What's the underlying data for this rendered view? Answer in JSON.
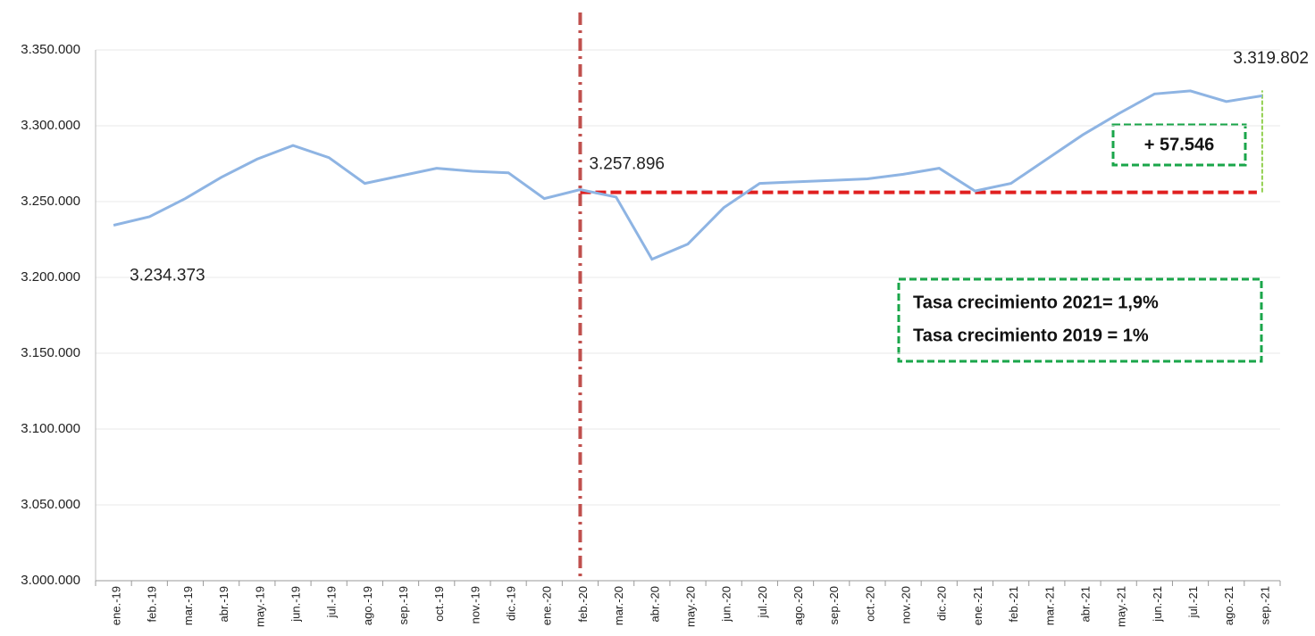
{
  "chart_data": {
    "type": "line",
    "categories": [
      "ene.-19",
      "feb.-19",
      "mar.-19",
      "abr.-19",
      "may.-19",
      "jun.-19",
      "jul.-19",
      "ago.-19",
      "sep.-19",
      "oct.-19",
      "nov.-19",
      "dic.-19",
      "ene.-20",
      "feb.-20",
      "mar.-20",
      "abr.-20",
      "may.-20",
      "jun.-20",
      "jul.-20",
      "ago.-20",
      "sep.-20",
      "oct.-20",
      "nov.-20",
      "dic.-20",
      "ene.-21",
      "feb.-21",
      "mar.-21",
      "abr.-21",
      "may.-21",
      "jun.-21",
      "jul.-21",
      "ago.-21",
      "sep.-21"
    ],
    "series": [
      {
        "color": "#8eb4e3",
        "values": [
          3234373,
          3240000,
          3252000,
          3266000,
          3278000,
          3287000,
          3279000,
          3262000,
          3267000,
          3272000,
          3270000,
          3269000,
          3252000,
          3257896,
          3253000,
          3212000,
          3222000,
          3246000,
          3262000,
          3263000,
          3264000,
          3265000,
          3268000,
          3272000,
          3257000,
          3262000,
          3278000,
          3294000,
          3308000,
          3321000,
          3323000,
          3316000,
          3319802
        ],
        "value_labels": [
          "3.234.373",
          null,
          null,
          null,
          null,
          null,
          null,
          null,
          null,
          null,
          null,
          null,
          null,
          "3.257.896",
          null,
          null,
          null,
          null,
          null,
          null,
          null,
          null,
          null,
          null,
          null,
          null,
          null,
          null,
          null,
          null,
          null,
          null,
          "3.319.802"
        ]
      }
    ],
    "ylim": [
      3000000,
      3350000
    ],
    "yticks": [
      {
        "value": 3000000,
        "label": "3.000.000"
      },
      {
        "value": 3050000,
        "label": "3.050.000"
      },
      {
        "value": 3100000,
        "label": "3.100.000"
      },
      {
        "value": 3150000,
        "label": "3.150.000"
      },
      {
        "value": 3200000,
        "label": "3.200.000"
      },
      {
        "value": 3250000,
        "label": "3.250.000"
      },
      {
        "value": 3300000,
        "label": "3.300.000"
      },
      {
        "value": 3350000,
        "label": "3.350.000"
      }
    ],
    "grid": true,
    "annotations": {
      "difference": "+ 57.546",
      "growth_2021": "Tasa crecimiento 2021= 1,9%",
      "growth_2019": "Tasa crecimiento 2019 = 1%"
    }
  }
}
